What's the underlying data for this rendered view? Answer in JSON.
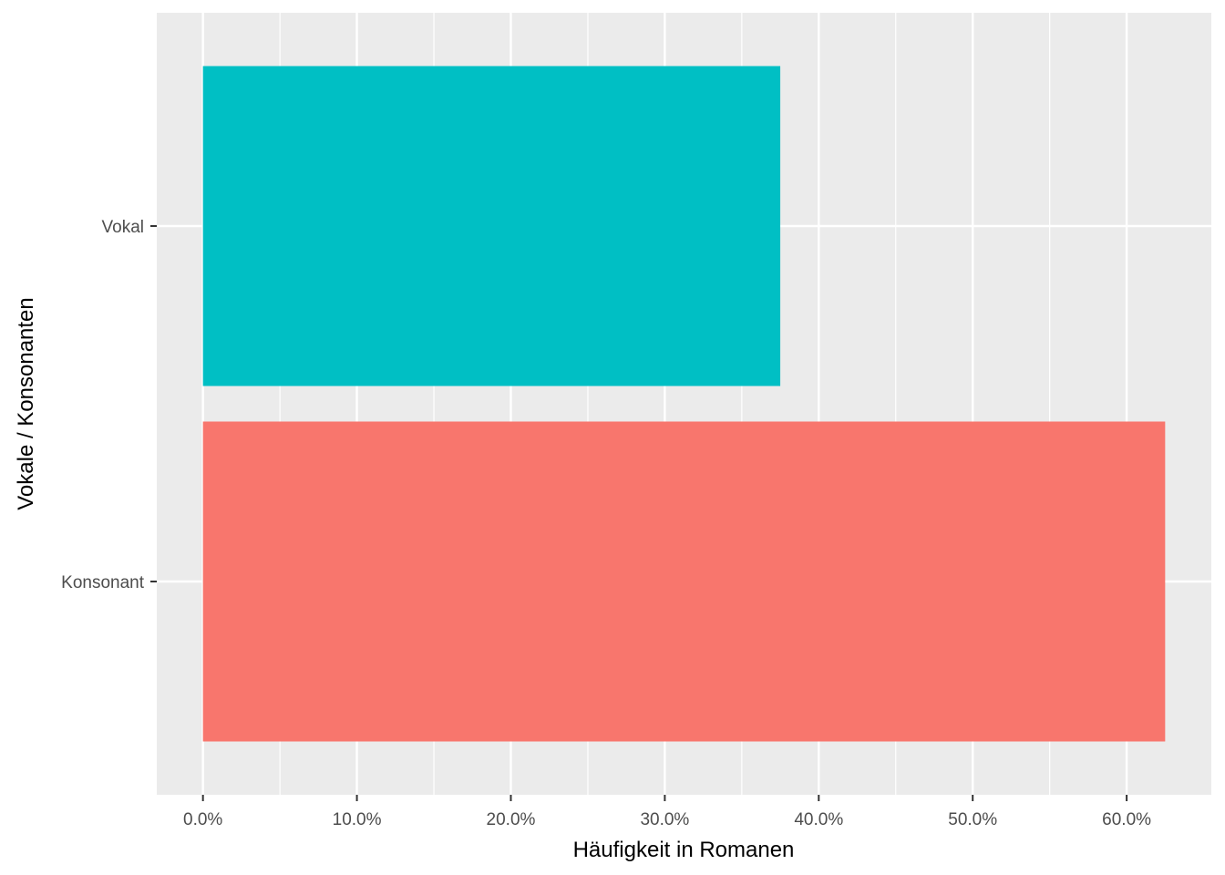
{
  "chart_data": {
    "type": "bar",
    "orientation": "horizontal",
    "categories": [
      "Konsonant",
      "Vokal"
    ],
    "values": [
      0.625,
      0.375
    ],
    "colors": [
      "#F8766D",
      "#00BFC4"
    ],
    "xlabel": "Häufigkeit in Romanen",
    "ylabel": "Vokale / Konsonanten",
    "xlim": [
      -0.03,
      0.655
    ],
    "xticks": [
      0,
      0.1,
      0.2,
      0.3,
      0.4,
      0.5,
      0.6
    ],
    "xtick_labels": [
      "0.0%",
      "10.0%",
      "20.0%",
      "30.0%",
      "40.0%",
      "50.0%",
      "60.0%"
    ],
    "x_minor_ticks": [
      0.05,
      0.15,
      0.25,
      0.35,
      0.45,
      0.55
    ],
    "grid": true,
    "legend": "none",
    "panel_background": "#EBEBEB",
    "grid_color": "#FFFFFF"
  }
}
